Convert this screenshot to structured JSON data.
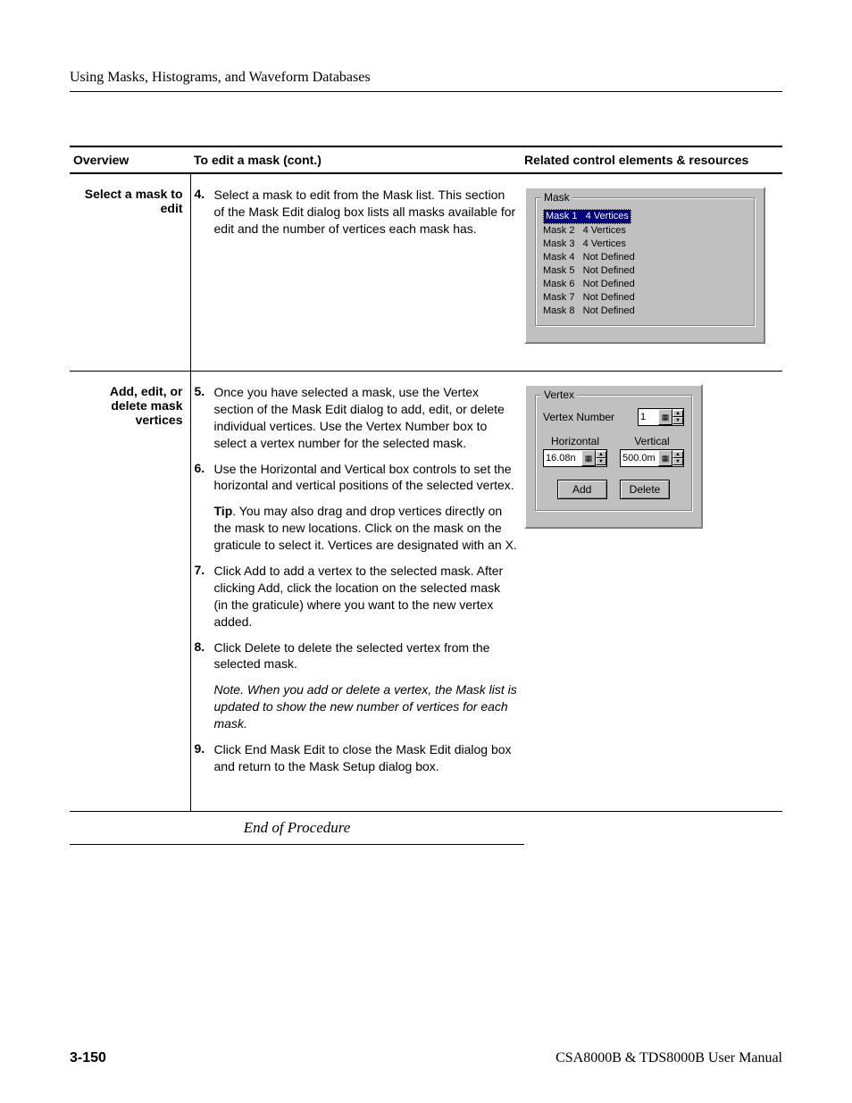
{
  "header": {
    "title": "Using Masks, Histograms, and Waveform Databases"
  },
  "table": {
    "columns": {
      "overview": "Overview",
      "steps": "To edit a mask (cont.)",
      "related": "Related control elements & resources"
    }
  },
  "row1": {
    "overview": "Select a mask to edit",
    "step4_num": "4.",
    "step4_text": "Select a mask to edit from the Mask list. This section of the Mask Edit dialog box lists all masks available for edit and the number of vertices each mask has.",
    "panel_title": "Mask",
    "masks": [
      {
        "label": "Mask 1",
        "value": "4 Vertices",
        "selected": true
      },
      {
        "label": "Mask 2",
        "value": "4 Vertices",
        "selected": false
      },
      {
        "label": "Mask 3",
        "value": "4 Vertices",
        "selected": false
      },
      {
        "label": "Mask 4",
        "value": "Not Defined",
        "selected": false
      },
      {
        "label": "Mask 5",
        "value": "Not Defined",
        "selected": false
      },
      {
        "label": "Mask 6",
        "value": "Not Defined",
        "selected": false
      },
      {
        "label": "Mask 7",
        "value": "Not Defined",
        "selected": false
      },
      {
        "label": "Mask 8",
        "value": "Not Defined",
        "selected": false
      }
    ]
  },
  "row2": {
    "overview": "Add, edit, or delete mask vertices",
    "step5_num": "5.",
    "step5_text": "Once you have selected a mask, use the Vertex section of the Mask Edit dialog to add, edit, or delete individual vertices. Use the Vertex Number box to select a vertex number for the selected mask.",
    "step6_num": "6.",
    "step6_text": "Use the Horizontal and Vertical box controls to set the horizontal and vertical positions of the selected vertex.",
    "tip_label": "Tip",
    "tip_text": "You may also drag and drop vertices directly on the mask to new locations. Click on the mask on the graticule to select it. Vertices are designated with an X.",
    "step7_num": "7.",
    "step7_text": "Click Add to add a vertex to the selected mask. After clicking Add, click the location on the selected mask (in the graticule) where you want to the new vertex added.",
    "step8_num": "8.",
    "step8_text": "Click Delete to delete the selected vertex from the selected mask.",
    "note_text": "Note. When you add or delete a vertex, the Mask list is updated to show the new number of vertices for each mask.",
    "step9_num": "9.",
    "step9_text": "Click End Mask Edit to close the Mask Edit dialog box and return to the Mask Setup dialog box.",
    "panel_title": "Vertex",
    "vertex_number_label": "Vertex Number",
    "vertex_number_value": "1",
    "horizontal_label": "Horizontal",
    "vertical_label": "Vertical",
    "horizontal_value": "16.08n",
    "vertical_value": "500.0m",
    "add_label": "Add",
    "delete_label": "Delete"
  },
  "end": {
    "text": "End of Procedure"
  },
  "footer": {
    "page": "3-150",
    "manual": "CSA8000B & TDS8000B User Manual"
  },
  "colors": {
    "panel_bg": "#c0c0c0",
    "highlight_bg": "#000080",
    "highlight_fg": "#ffffff"
  }
}
